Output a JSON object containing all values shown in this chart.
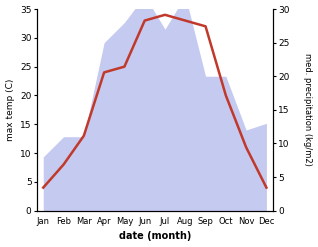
{
  "months": [
    "Jan",
    "Feb",
    "Mar",
    "Apr",
    "May",
    "Jun",
    "Jul",
    "Aug",
    "Sep",
    "Oct",
    "Nov",
    "Dec"
  ],
  "temperature": [
    4,
    8,
    13,
    24,
    25,
    33,
    34,
    33,
    32,
    20,
    11,
    4
  ],
  "precipitation": [
    8,
    11,
    11,
    25,
    28,
    32,
    27,
    32,
    20,
    20,
    12,
    13
  ],
  "temp_color": "#c0392b",
  "precip_color_fill": "#c5caf0",
  "temp_ylim": [
    0,
    35
  ],
  "precip_ylim": [
    0,
    30
  ],
  "xlabel": "date (month)",
  "ylabel_left": "max temp (C)",
  "ylabel_right": "med. precipitation (kg/m2)",
  "temp_linewidth": 1.8,
  "background_color": "#ffffff",
  "left_ticks": [
    0,
    5,
    10,
    15,
    20,
    25,
    30,
    35
  ],
  "right_ticks": [
    0,
    5,
    10,
    15,
    20,
    25,
    30
  ]
}
